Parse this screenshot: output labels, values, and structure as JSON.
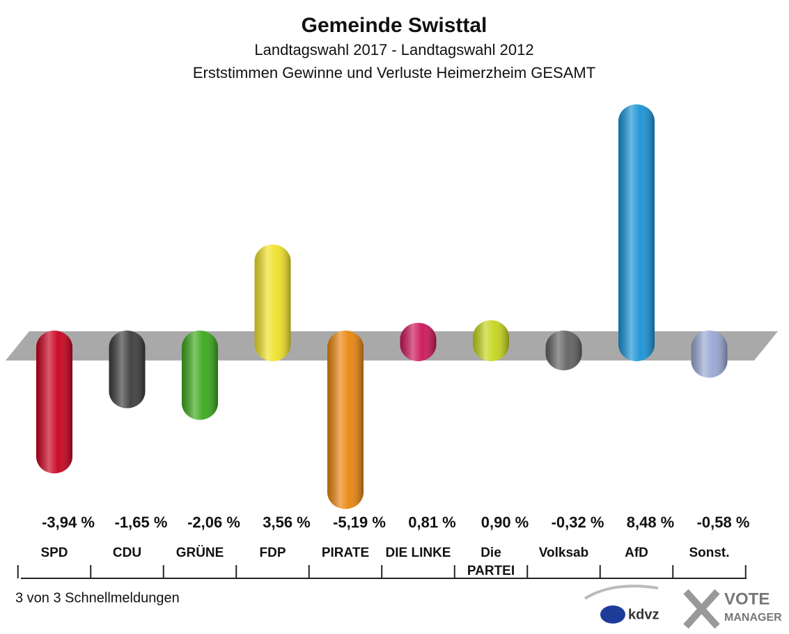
{
  "chart_data": {
    "type": "bar",
    "title": "Gemeinde Swisttal",
    "subtitle": [
      "Landtagswahl 2017 - Landtagswahl 2012",
      "Erststimmen Gewinne und Verluste Heimerzheim GESAMT"
    ],
    "categories": [
      "SPD",
      "CDU",
      "GRÜNE",
      "FDP",
      "PIRATE",
      "DIE LINKE",
      "Die PARTEI",
      "Volksab",
      "AfD",
      "Sonst."
    ],
    "values": [
      -3.94,
      -1.65,
      -2.06,
      3.56,
      -5.19,
      0.81,
      0.9,
      -0.32,
      8.48,
      -0.58
    ],
    "value_labels": [
      "-3,94 %",
      "-1,65 %",
      "-2,06 %",
      "3,56 %",
      "-5,19 %",
      "0,81 %",
      "0,90 %",
      "-0,32 %",
      "8,48 %",
      "-0,58 %"
    ],
    "colors": [
      "#c8001e",
      "#3c3c3c",
      "#3aa81a",
      "#f0e128",
      "#e8850e",
      "#cc1558",
      "#c4d41a",
      "#616161",
      "#1892d6",
      "#98a6d2"
    ],
    "footer": "3 von 3 Schnellmeldungen",
    "logos": [
      "kdvz",
      "VOTE",
      "MANAGER"
    ]
  }
}
